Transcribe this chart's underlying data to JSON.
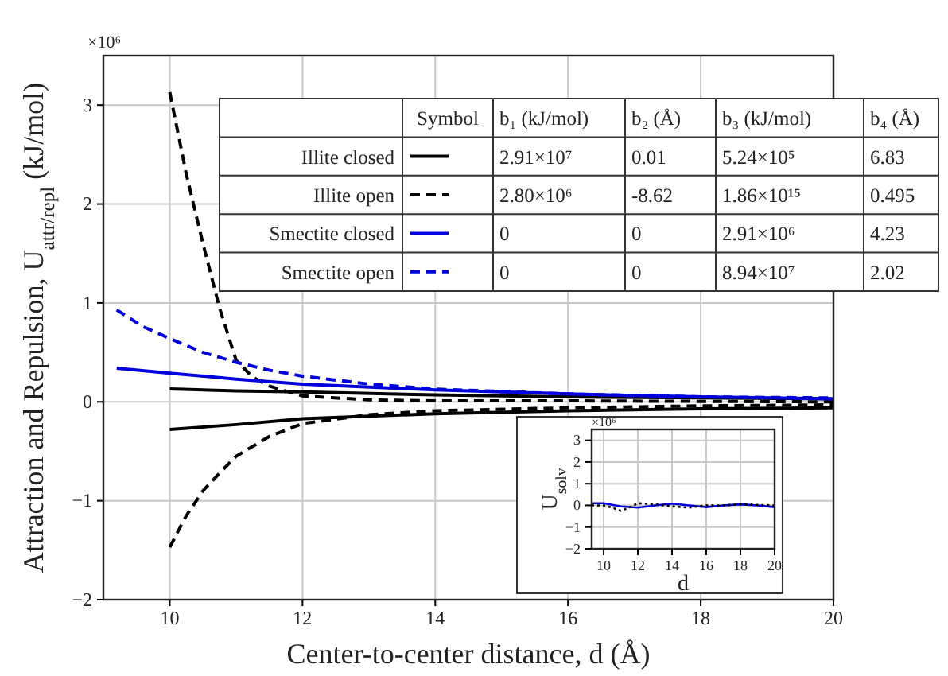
{
  "chart_data": [
    {
      "type": "line",
      "xlabel": "Center-to-center distance, d (Å)",
      "ylabel": "Attraction and Repulsion, U$_{attr/repl}$ (kJ/mol)",
      "xlim": [
        9,
        20
      ],
      "xticks": [
        10,
        12,
        14,
        16,
        18,
        20
      ],
      "ylim": [
        -2,
        3.5
      ],
      "yticks": [
        -2,
        -1,
        0,
        1,
        2,
        3
      ],
      "grid": true,
      "legend": "top",
      "annotations": [
        "×10⁶",
        "Symbol",
        "b₁ (kJ/mol)",
        "b₂ (Å)",
        "b₃ (kJ/mol)",
        "b₄ (Å)",
        "2.91×10⁷",
        "0.01",
        "5.24×10⁵",
        "6.83",
        "2.80×10⁶",
        "-8.62",
        "1.86×10¹⁵",
        "0.495",
        "0",
        "0",
        "2.91×10⁶",
        "4.23",
        "0",
        "0",
        "8.94×10⁷",
        "2.02"
      ],
      "series": [
        {
          "name": "Illite closed",
          "color": "#000000",
          "line_style": "solid",
          "x": [
            10,
            11,
            12,
            14,
            16,
            18,
            20
          ],
          "values": [
            0.13,
            0.11,
            0.1,
            0.07,
            0.05,
            0.04,
            0.03
          ]
        },
        {
          "name": "Illite open",
          "color": "#000000",
          "line_style": "dashed",
          "x": [
            10,
            10.25,
            10.5,
            10.75,
            11,
            11.25,
            11.5,
            12,
            13,
            14,
            16,
            20
          ],
          "values": [
            3.13,
            2.3,
            1.6,
            0.95,
            0.42,
            0.25,
            0.16,
            0.06,
            0.02,
            0.01,
            0.01,
            0
          ]
        },
        {
          "name": "Smectite closed",
          "color": "#0000dd",
          "line_style": "solid",
          "x": [
            9.2,
            10,
            11,
            12,
            14,
            16,
            18,
            20
          ],
          "values": [
            0.34,
            0.29,
            0.23,
            0.18,
            0.12,
            0.08,
            0.05,
            0.03
          ]
        },
        {
          "name": "Smectite open",
          "color": "#0000dd",
          "line_style": "dashed",
          "x": [
            9.2,
            9.6,
            10,
            10.5,
            11,
            11.5,
            12,
            13,
            14,
            16,
            18,
            20
          ],
          "values": [
            0.93,
            0.76,
            0.64,
            0.5,
            0.4,
            0.32,
            0.26,
            0.18,
            0.13,
            0.08,
            0.05,
            0.04
          ]
        },
        {
          "color": "#000000",
          "line_style": "solid",
          "x": [
            10,
            11,
            12,
            14,
            16,
            18,
            20
          ],
          "values": [
            -0.28,
            -0.23,
            -0.17,
            -0.12,
            -0.09,
            -0.07,
            -0.06
          ]
        },
        {
          "color": "#000000",
          "line_style": "dashed",
          "x": [
            10,
            10.25,
            10.5,
            10.75,
            11,
            11.5,
            12,
            13,
            14,
            16,
            18,
            20
          ],
          "values": [
            -1.47,
            -1.15,
            -0.9,
            -0.72,
            -0.55,
            -0.35,
            -0.22,
            -0.13,
            -0.09,
            -0.06,
            -0.04,
            -0.03
          ]
        }
      ]
    },
    {
      "type": "line",
      "xlabel": "d",
      "ylabel": "U$_{solv}$",
      "xlim": [
        9.3,
        20
      ],
      "xticks": [
        10,
        12,
        14,
        16,
        18,
        20
      ],
      "ylim": [
        -2,
        3.5
      ],
      "yticks": [
        -2,
        -1,
        0,
        1,
        2,
        3
      ],
      "grid": true,
      "annotations": [
        "×10⁶"
      ],
      "series": [
        {
          "color": "#0000dd",
          "line_style": "solid",
          "x": [
            9.3,
            10,
            11,
            12,
            13,
            14,
            15,
            16,
            17,
            18,
            19,
            20
          ],
          "values": [
            0.1,
            0.1,
            -0.05,
            -0.1,
            0,
            0.08,
            0,
            -0.08,
            0,
            0.05,
            0,
            -0.08
          ]
        },
        {
          "color": "#000000",
          "line_style": "dotted",
          "x": [
            9.3,
            10,
            10.5,
            11,
            11.5,
            12,
            13,
            14,
            15,
            16,
            17,
            18,
            20
          ],
          "values": [
            0,
            0,
            -0.1,
            -0.25,
            -0.1,
            0.1,
            0.05,
            -0.05,
            -0.1,
            0,
            0,
            0.05,
            0
          ]
        }
      ]
    }
  ]
}
